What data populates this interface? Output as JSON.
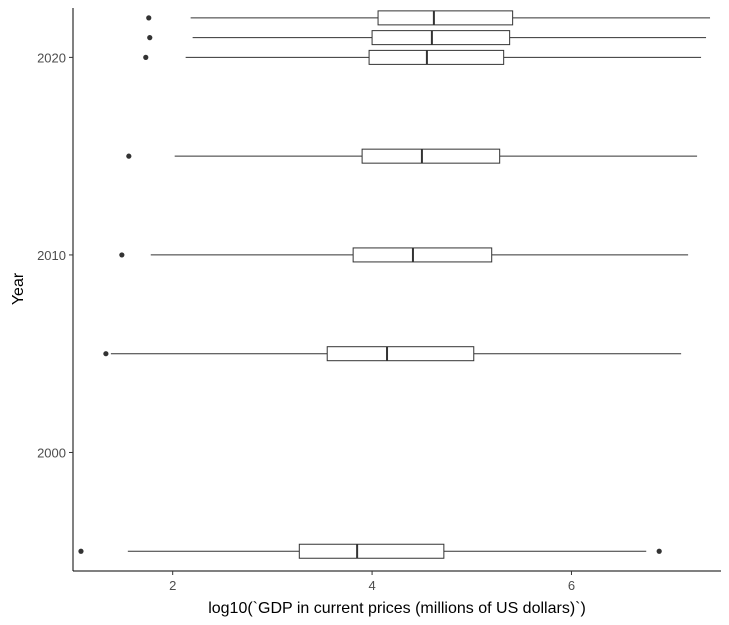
{
  "chart_data": {
    "type": "boxplot",
    "orientation": "horizontal",
    "xlabel": "log10(`GDP in current prices (millions of US dollars)`)",
    "ylabel": "Year",
    "xlim": [
      1.0,
      7.5
    ],
    "ylim": [
      1994,
      2022.5
    ],
    "x_ticks": [
      2,
      4,
      6
    ],
    "y_ticks": [
      2000,
      2010,
      2020
    ],
    "grid": false,
    "legend": "none",
    "boxes": [
      {
        "year": 1995,
        "whisker_low": 1.55,
        "q1": 3.27,
        "median": 3.85,
        "q3": 4.72,
        "whisker_high": 6.75,
        "outliers": [
          1.08,
          6.88
        ]
      },
      {
        "year": 2005,
        "whisker_low": 1.38,
        "q1": 3.55,
        "median": 4.15,
        "q3": 5.02,
        "whisker_high": 7.1,
        "outliers": [
          1.33
        ]
      },
      {
        "year": 2010,
        "whisker_low": 1.78,
        "q1": 3.81,
        "median": 4.41,
        "q3": 5.2,
        "whisker_high": 7.17,
        "outliers": [
          1.49
        ]
      },
      {
        "year": 2015,
        "whisker_low": 2.02,
        "q1": 3.9,
        "median": 4.5,
        "q3": 5.28,
        "whisker_high": 7.26,
        "outliers": [
          1.56
        ]
      },
      {
        "year": 2020,
        "whisker_low": 2.13,
        "q1": 3.97,
        "median": 4.55,
        "q3": 5.32,
        "whisker_high": 7.3,
        "outliers": [
          1.73
        ]
      },
      {
        "year": 2021,
        "whisker_low": 2.2,
        "q1": 4.0,
        "median": 4.6,
        "q3": 5.38,
        "whisker_high": 7.35,
        "outliers": [
          1.77
        ]
      },
      {
        "year": 2022,
        "whisker_low": 2.18,
        "q1": 4.06,
        "median": 4.62,
        "q3": 5.41,
        "whisker_high": 7.39,
        "outliers": [
          1.76
        ]
      }
    ]
  }
}
